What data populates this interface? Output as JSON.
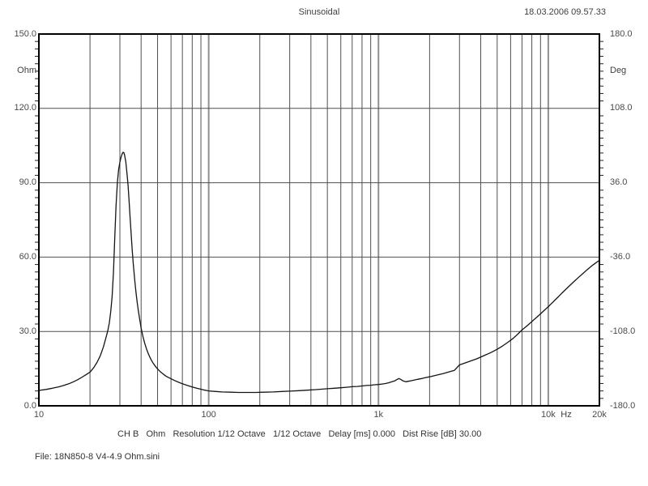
{
  "header": {
    "title": "Sinusoidal",
    "timestamp": "18.03.2006 09.57.33"
  },
  "axes": {
    "left_unit": "Ohm",
    "right_unit": "Deg",
    "x_unit": "Hz",
    "left_ticks": [
      "150.0",
      "120.0",
      "90.0",
      "60.0",
      "30.0",
      "0.0"
    ],
    "right_ticks": [
      "180.0",
      "108.0",
      "36.0",
      "-36.0",
      "-108.0",
      "-180.0"
    ],
    "x_ticks": [
      "10",
      "100",
      "1k",
      "10k",
      "20k"
    ]
  },
  "footer": {
    "status_line": "CH B   Ohm   Resolution 1/12 Octave   1/12 Octave   Delay [ms] 0.000   Dist Rise [dB] 30.00",
    "file_line": "File: 18N850-8 V4-4.9 Ohm.sini"
  },
  "chart_data": {
    "type": "line",
    "title": "Sinusoidal",
    "x_axis": {
      "label": "Hz",
      "scale": "log",
      "min": 10,
      "max": 20000,
      "tick_values": [
        10,
        100,
        1000,
        10000,
        20000
      ],
      "tick_labels": [
        "10",
        "100",
        "1k",
        "10k",
        "20k"
      ],
      "minor_gridlines": "multiples 2-9 within each decade, full-height lines"
    },
    "y_axis_left": {
      "label": "Ohm",
      "min": 0,
      "max": 150,
      "tick_values": [
        0,
        30,
        60,
        90,
        120,
        150
      ],
      "minor_tick_step": 3
    },
    "y_axis_right": {
      "label": "Deg",
      "min": -180,
      "max": 180,
      "tick_values": [
        -180,
        -108,
        -36,
        36,
        108,
        180
      ],
      "minor_tick_step": 7.2
    },
    "grid": "horizontal lines every 30 Ohm; vertical log lines each decade subdivision",
    "legend": "none",
    "series": [
      {
        "name": "impedance-magnitude",
        "unit": "Ohm",
        "color": "#141414",
        "points": [
          [
            10,
            6.2
          ],
          [
            11,
            6.6
          ],
          [
            12,
            7.1
          ],
          [
            13,
            7.6
          ],
          [
            14,
            8.2
          ],
          [
            15,
            8.9
          ],
          [
            16,
            9.7
          ],
          [
            17,
            10.6
          ],
          [
            18,
            11.6
          ],
          [
            19,
            12.6
          ],
          [
            20,
            13.6
          ],
          [
            21,
            15.3
          ],
          [
            22,
            17.5
          ],
          [
            23,
            20.2
          ],
          [
            24,
            23.8
          ],
          [
            25,
            28.2
          ],
          [
            25.5,
            30.5
          ],
          [
            26,
            33.5
          ],
          [
            26.5,
            38
          ],
          [
            27,
            44
          ],
          [
            27.5,
            54
          ],
          [
            28,
            68
          ],
          [
            28.5,
            81
          ],
          [
            29,
            90
          ],
          [
            29.5,
            95.5
          ],
          [
            30,
            98.3
          ],
          [
            30.5,
            100.4
          ],
          [
            31,
            101.8
          ],
          [
            31.3,
            102.3
          ],
          [
            31.7,
            102.1
          ],
          [
            32,
            101
          ],
          [
            32.5,
            98.5
          ],
          [
            33,
            94
          ],
          [
            33.5,
            89
          ],
          [
            34,
            82.5
          ],
          [
            34.5,
            75.5
          ],
          [
            35,
            68.5
          ],
          [
            35.5,
            62.5
          ],
          [
            36,
            57
          ],
          [
            36.5,
            52.3
          ],
          [
            37,
            48.2
          ],
          [
            37.5,
            44.6
          ],
          [
            38,
            41.4
          ],
          [
            38.5,
            38.6
          ],
          [
            39,
            36
          ],
          [
            39.5,
            33.6
          ],
          [
            40,
            31.4
          ],
          [
            41,
            27.9
          ],
          [
            42,
            25.2
          ],
          [
            43,
            23
          ],
          [
            44,
            21.2
          ],
          [
            45,
            19.7
          ],
          [
            46,
            18.4
          ],
          [
            47,
            17.3
          ],
          [
            48,
            16.4
          ],
          [
            49,
            15.6
          ],
          [
            50,
            14.9
          ],
          [
            52,
            13.7
          ],
          [
            54,
            12.8
          ],
          [
            56,
            12
          ],
          [
            58,
            11.4
          ],
          [
            60,
            10.9
          ],
          [
            63,
            10.2
          ],
          [
            66,
            9.6
          ],
          [
            70,
            8.9
          ],
          [
            75,
            8.2
          ],
          [
            80,
            7.6
          ],
          [
            85,
            7.1
          ],
          [
            90,
            6.7
          ],
          [
            95,
            6.3
          ],
          [
            100,
            6
          ],
          [
            110,
            5.8
          ],
          [
            120,
            5.6
          ],
          [
            135,
            5.5
          ],
          [
            150,
            5.4
          ],
          [
            170,
            5.4
          ],
          [
            190,
            5.4
          ],
          [
            210,
            5.5
          ],
          [
            240,
            5.6
          ],
          [
            270,
            5.8
          ],
          [
            300,
            5.9
          ],
          [
            340,
            6.1
          ],
          [
            380,
            6.3
          ],
          [
            420,
            6.5
          ],
          [
            460,
            6.7
          ],
          [
            500,
            6.9
          ],
          [
            550,
            7.1
          ],
          [
            600,
            7.3
          ],
          [
            650,
            7.5
          ],
          [
            700,
            7.7
          ],
          [
            750,
            7.8
          ],
          [
            800,
            8
          ],
          [
            850,
            8.2
          ],
          [
            900,
            8.3
          ],
          [
            950,
            8.5
          ],
          [
            1000,
            8.6
          ],
          [
            1050,
            8.8
          ],
          [
            1100,
            9
          ],
          [
            1150,
            9.3
          ],
          [
            1200,
            9.7
          ],
          [
            1250,
            10.1
          ],
          [
            1290,
            10.7
          ],
          [
            1320,
            11
          ],
          [
            1350,
            10.7
          ],
          [
            1400,
            10
          ],
          [
            1450,
            9.7
          ],
          [
            1500,
            9.9
          ],
          [
            1550,
            10.1
          ],
          [
            1600,
            10.3
          ],
          [
            1700,
            10.7
          ],
          [
            1800,
            11
          ],
          [
            1900,
            11.4
          ],
          [
            2000,
            11.7
          ],
          [
            2200,
            12.4
          ],
          [
            2400,
            13
          ],
          [
            2600,
            13.7
          ],
          [
            2800,
            14.3
          ],
          [
            3000,
            16.5
          ],
          [
            3400,
            17.8
          ],
          [
            3800,
            19
          ],
          [
            4200,
            20.3
          ],
          [
            4600,
            21.5
          ],
          [
            5000,
            22.8
          ],
          [
            5400,
            24.2
          ],
          [
            5800,
            25.7
          ],
          [
            6200,
            27.2
          ],
          [
            6600,
            28.9
          ],
          [
            7000,
            30.6
          ],
          [
            7500,
            32.3
          ],
          [
            8000,
            34
          ],
          [
            8500,
            35.6
          ],
          [
            9000,
            37.1
          ],
          [
            9500,
            38.6
          ],
          [
            10000,
            40
          ],
          [
            10500,
            41.4
          ],
          [
            11000,
            42.8
          ],
          [
            11500,
            44.1
          ],
          [
            12000,
            45.4
          ],
          [
            13000,
            47.7
          ],
          [
            14000,
            49.8
          ],
          [
            15000,
            51.7
          ],
          [
            16000,
            53.4
          ],
          [
            17000,
            55
          ],
          [
            18000,
            56.4
          ],
          [
            19000,
            57.6
          ],
          [
            20000,
            58.7
          ]
        ]
      }
    ]
  }
}
